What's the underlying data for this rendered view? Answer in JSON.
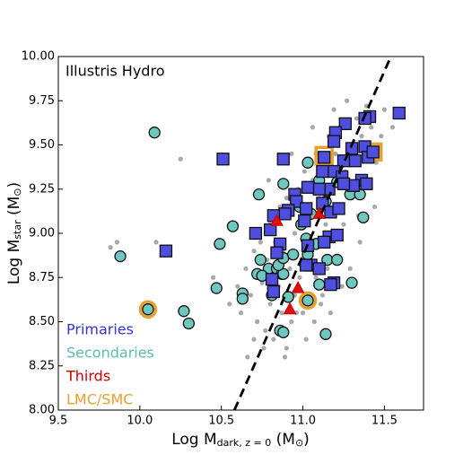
{
  "chart_data": {
    "type": "scatter",
    "annotation": "Illustris Hydro",
    "xlabel": {
      "main": "Log M",
      "sub": "dark, z = 0",
      "unit": " (M",
      "unit_sub": "⊙",
      "close": ")"
    },
    "ylabel": {
      "main": "Log M",
      "sub": "star",
      "unit": " (M",
      "unit_sub": "⊙",
      "close": ")"
    },
    "xlim": [
      9.5,
      11.74
    ],
    "ylim": [
      8.0,
      10.0
    ],
    "xticks": [
      9.5,
      {
        "value": 10.0,
        "label": "10.0"
      },
      10.5,
      {
        "value": 11.0,
        "label": "11.0"
      },
      11.5
    ],
    "yticks": [
      {
        "value": 8.0,
        "label": "8.00"
      },
      {
        "value": 8.25,
        "label": "8.25"
      },
      {
        "value": 8.5,
        "label": "8.50"
      },
      {
        "value": 8.75,
        "label": "8.75"
      },
      {
        "value": 9.0,
        "label": "9.00"
      },
      {
        "value": 9.25,
        "label": "9.25"
      },
      {
        "value": 9.5,
        "label": "9.50"
      },
      {
        "value": 9.75,
        "label": "9.75"
      },
      {
        "value": 10.0,
        "label": "10.00"
      }
    ],
    "fit_line": {
      "color": "#000000",
      "style": "dashed",
      "x": [
        10.58,
        11.54
      ],
      "values": [
        8.0,
        10.0
      ]
    },
    "series": [
      {
        "color": "#a8a8a8",
        "marker": "dot",
        "x": [
          9.82,
          9.86,
          10.1,
          10.25,
          10.45,
          10.55,
          10.6,
          10.62,
          10.65,
          10.68,
          10.7,
          10.72,
          10.74,
          10.75,
          10.77,
          10.78,
          10.8,
          10.8,
          10.82,
          10.83,
          10.85,
          10.86,
          10.87,
          10.88,
          10.9,
          10.9,
          10.92,
          10.93,
          10.95,
          10.95,
          10.97,
          10.98,
          11.0,
          11.0,
          11.01,
          11.03,
          11.04,
          11.05,
          11.06,
          11.08,
          11.08,
          11.1,
          11.1,
          11.12,
          11.13,
          11.14,
          11.15,
          11.16,
          11.18,
          11.18,
          11.2,
          11.2,
          11.22,
          11.23,
          11.25,
          11.26,
          11.28,
          11.3,
          11.31,
          11.33,
          11.34,
          11.36,
          11.38,
          11.4,
          11.42,
          11.45,
          11.48,
          11.5,
          11.55,
          10.66,
          10.7,
          10.76,
          10.84,
          10.89,
          10.96,
          11.02,
          11.07,
          11.11,
          11.17,
          11.24,
          11.29,
          11.35,
          11.44,
          10.79,
          10.93,
          11.06,
          11.19,
          11.27,
          11.39
        ],
        "values": [
          8.92,
          8.95,
          8.95,
          9.42,
          8.75,
          8.6,
          8.7,
          8.55,
          8.8,
          8.65,
          8.9,
          8.5,
          8.95,
          8.72,
          8.45,
          8.85,
          8.6,
          9.05,
          8.4,
          8.95,
          8.7,
          9.15,
          8.55,
          8.9,
          8.35,
          9.2,
          8.8,
          8.5,
          9.0,
          8.65,
          9.25,
          8.75,
          8.55,
          9.05,
          9.35,
          8.85,
          8.65,
          9.1,
          9.3,
          8.75,
          9.45,
          8.95,
          9.2,
          8.65,
          9.4,
          9.05,
          8.8,
          9.55,
          9.0,
          9.25,
          8.85,
          9.45,
          9.15,
          9.6,
          9.05,
          9.35,
          9.5,
          9.2,
          9.4,
          9.65,
          9.1,
          9.55,
          9.3,
          9.5,
          9.6,
          9.4,
          9.55,
          9.7,
          9.6,
          8.3,
          8.4,
          8.35,
          8.45,
          8.3,
          8.55,
          8.4,
          8.5,
          8.6,
          8.55,
          8.7,
          8.8,
          8.95,
          9.15,
          9.3,
          9.45,
          9.6,
          9.7,
          9.75,
          9.72
        ]
      },
      {
        "name": "Primaries",
        "color": "#3434d4",
        "fill": "#4e4ee0",
        "marker": "square",
        "x": [
          11.59,
          11.41,
          11.38,
          11.26,
          11.2,
          11.19,
          11.3,
          11.38,
          11.4,
          11.32,
          11.25,
          11.19,
          11.12,
          11.24,
          11.36,
          11.39,
          11.31,
          11.25,
          11.16,
          11.1,
          11.03,
          10.88,
          10.51,
          10.95,
          10.96,
          10.91,
          10.89,
          10.82,
          11.12,
          11.17,
          11.22,
          11.02,
          11.01,
          10.8,
          10.71,
          11.16,
          11.21,
          11.13,
          11.03,
          10.86,
          10.84,
          10.16,
          11.05,
          11.02,
          11.1,
          11.19,
          11.17,
          10.81,
          10.82,
          11.13,
          11.43
        ],
        "values": [
          9.68,
          9.66,
          9.65,
          9.62,
          9.57,
          9.52,
          9.48,
          9.49,
          9.43,
          9.41,
          9.41,
          9.35,
          9.35,
          9.32,
          9.3,
          9.28,
          9.27,
          9.28,
          9.25,
          9.25,
          9.26,
          9.42,
          9.42,
          9.22,
          9.18,
          9.13,
          9.11,
          9.1,
          9.17,
          9.12,
          9.14,
          9.14,
          9.07,
          9.02,
          9.0,
          8.98,
          8.99,
          8.95,
          8.93,
          8.94,
          8.89,
          8.9,
          8.82,
          8.82,
          8.8,
          8.72,
          8.71,
          8.74,
          8.67,
          9.43,
          9.46
        ]
      },
      {
        "name": "Secondaries",
        "color": "#5bbdb4",
        "fill": "#6ec8bf",
        "marker": "circle",
        "x": [
          10.09,
          9.88,
          10.05,
          10.27,
          10.3,
          10.47,
          10.63,
          10.63,
          10.49,
          10.57,
          10.73,
          10.88,
          10.74,
          10.79,
          10.72,
          10.75,
          10.84,
          10.87,
          10.88,
          10.85,
          10.88,
          10.81,
          10.91,
          10.86,
          10.88,
          11.03,
          11.14,
          11.1,
          11.17,
          11.15,
          11.21,
          11.3,
          11.03,
          11.02,
          11.08,
          10.99,
          10.98,
          11.05,
          11.14,
          11.1,
          11.03,
          11.21,
          11.29,
          11.35,
          11.37,
          10.94
        ],
        "values": [
          9.57,
          8.87,
          8.57,
          8.56,
          8.49,
          8.69,
          8.66,
          8.63,
          8.94,
          9.04,
          9.22,
          9.28,
          8.85,
          8.8,
          8.77,
          8.76,
          8.8,
          8.77,
          8.77,
          8.82,
          8.86,
          8.65,
          8.64,
          8.45,
          8.44,
          8.62,
          8.43,
          8.71,
          8.72,
          8.85,
          8.85,
          8.72,
          8.88,
          8.97,
          8.94,
          9.05,
          9.15,
          9.11,
          9.18,
          9.3,
          9.4,
          9.29,
          9.22,
          9.22,
          9.09,
          8.88
        ]
      },
      {
        "name": "Thirds",
        "color": "#cc0000",
        "fill": "#e01010",
        "marker": "triangle",
        "x": [
          11.1,
          10.84,
          10.97,
          10.92
        ],
        "values": [
          9.11,
          9.07,
          8.69,
          8.57
        ]
      },
      {
        "name": "LMC/SMC",
        "color": "#e8a030",
        "fill": "none",
        "marker": "ring",
        "markers": [
          "circle",
          "circle",
          "square",
          "square"
        ],
        "x": [
          10.05,
          11.03,
          11.13,
          11.43
        ],
        "values": [
          8.57,
          8.62,
          9.44,
          9.46
        ]
      }
    ]
  }
}
